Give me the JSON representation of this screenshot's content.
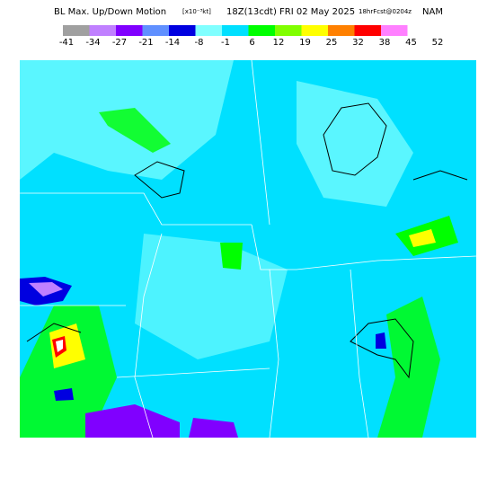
{
  "header": {
    "title": "BL Max. Up/Down Motion",
    "units": "[x10⁻³kt]",
    "valid_time": "18Z(13cdt) FRI 02 May 2025",
    "forecast": "18hrFcst@0204z",
    "model": "NAM"
  },
  "legend": {
    "labels": [
      "-41",
      "-34",
      "-27",
      "-21",
      "-14",
      "-8",
      "-1",
      "6",
      "12",
      "19",
      "25",
      "32",
      "38",
      "45",
      "52"
    ],
    "colors": [
      "#a0a0a0",
      "#c080ff",
      "#8000ff",
      "#6090ff",
      "#0000e0",
      "#80ffff",
      "#00e0ff",
      "#00ff00",
      "#80ff00",
      "#ffff00",
      "#ff8000",
      "#ff0000",
      "#ff80ff"
    ]
  }
}
